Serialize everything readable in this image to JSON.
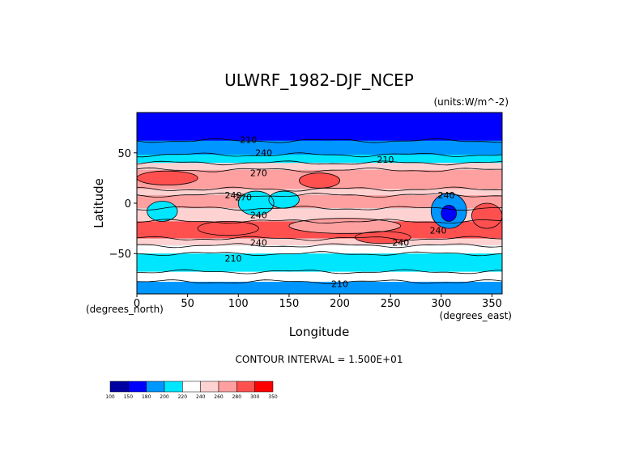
{
  "chart_data": {
    "type": "heatmap",
    "title": "ULWRF_1982-DJF_NCEP",
    "units": "(units:W/m^-2)",
    "xlabel": "Longitude",
    "ylabel": "Latitude",
    "x_unit_note": "(degrees_east)",
    "y_unit_note": "(degrees_north)",
    "xlim": [
      0,
      360
    ],
    "ylim": [
      -90,
      90
    ],
    "x_ticks": [
      "0",
      "50",
      "100",
      "150",
      "200",
      "250",
      "300",
      "350"
    ],
    "y_ticks": [
      "50",
      "0",
      "−50"
    ],
    "contour_interval": "CONTOUR INTERVAL = 1.500E+01",
    "contour_labels": [
      "240",
      "210",
      "210",
      "270",
      "240",
      "270",
      "240",
      "240",
      "240",
      "210",
      "210",
      "240",
      "240"
    ],
    "colorbar": {
      "levels": [
        "100",
        "150",
        "180",
        "200",
        "220",
        "240",
        "260",
        "280",
        "300",
        "350"
      ],
      "colors": [
        "#0000a0",
        "#0000ff",
        "#0096ff",
        "#00e6ff",
        "#ffffff",
        "#ffd2d2",
        "#ffa0a0",
        "#ff5050",
        "#ff0000"
      ]
    },
    "bands": [
      {
        "lat": [
          62,
          90
        ],
        "value": 160
      },
      {
        "lat": [
          48,
          62
        ],
        "value": 195
      },
      {
        "lat": [
          40,
          48
        ],
        "value": 215
      },
      {
        "lat": [
          33,
          40
        ],
        "value": 245
      },
      {
        "lat": [
          14,
          33
        ],
        "value": 275
      },
      {
        "lat": [
          8,
          14
        ],
        "value": 245
      },
      {
        "lat": [
          -5,
          8
        ],
        "value": 265
      },
      {
        "lat": [
          -18,
          -5
        ],
        "value": 255
      },
      {
        "lat": [
          -35,
          -18
        ],
        "value": 280
      },
      {
        "lat": [
          -42,
          -35
        ],
        "value": 250
      },
      {
        "lat": [
          -50,
          -42
        ],
        "value": 225
      },
      {
        "lat": [
          -68,
          -50
        ],
        "value": 205
      },
      {
        "lat": [
          -78,
          -68
        ],
        "value": 220
      },
      {
        "lat": [
          -90,
          -78
        ],
        "value": 190
      }
    ],
    "features": [
      {
        "lon": [
          290,
          325
        ],
        "lat": [
          -25,
          10
        ],
        "value": 185
      },
      {
        "lon": [
          300,
          315
        ],
        "lat": [
          -18,
          -2
        ],
        "value": 160
      },
      {
        "lon": [
          10,
          40
        ],
        "lat": [
          -18,
          2
        ],
        "value": 205
      },
      {
        "lon": [
          100,
          135
        ],
        "lat": [
          -12,
          12
        ],
        "value": 215
      },
      {
        "lon": [
          130,
          160
        ],
        "lat": [
          -5,
          12
        ],
        "value": 205
      },
      {
        "lon": [
          60,
          120
        ],
        "lat": [
          -32,
          -18
        ],
        "value": 285
      },
      {
        "lon": [
          150,
          260
        ],
        "lat": [
          -30,
          -15
        ],
        "value": 275
      },
      {
        "lon": [
          330,
          360
        ],
        "lat": [
          -25,
          0
        ],
        "value": 290
      },
      {
        "lon": [
          215,
          270
        ],
        "lat": [
          -40,
          -28
        ],
        "value": 290
      },
      {
        "lon": [
          160,
          200
        ],
        "lat": [
          15,
          30
        ],
        "value": 285
      },
      {
        "lon": [
          0,
          60
        ],
        "lat": [
          18,
          32
        ],
        "value": 285
      }
    ]
  }
}
